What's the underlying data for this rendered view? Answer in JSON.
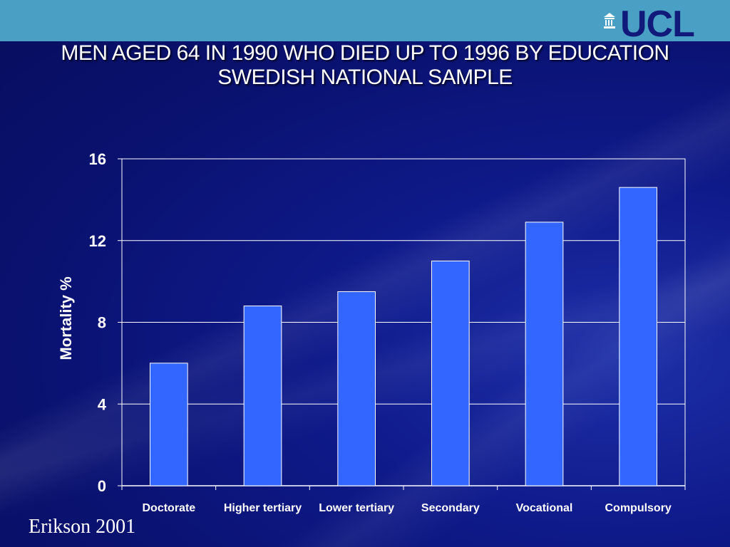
{
  "header": {
    "logo_text": "UCL",
    "logo_icon": "portico-icon",
    "bar_color": "#4aa0c4"
  },
  "title": {
    "line1": "MEN AGED 64 IN 1990 WHO DIED UP TO 1996 BY EDUCATION",
    "line2": "SWEDISH NATIONAL SAMPLE"
  },
  "source": "Erikson 2001",
  "chart_data": {
    "type": "bar",
    "categories": [
      "Doctorate",
      "Higher tertiary",
      "Lower tertiary",
      "Secondary",
      "Vocational",
      "Compulsory"
    ],
    "values": [
      6.0,
      8.8,
      9.5,
      11.0,
      12.9,
      14.6
    ],
    "ylabel": "Mortality %",
    "xlabel": "",
    "ylim": [
      0,
      16
    ],
    "yticks": [
      "0",
      "4",
      "8",
      "12",
      "16"
    ],
    "grid": true,
    "legend": "none",
    "bar_color": "#3366ff"
  }
}
